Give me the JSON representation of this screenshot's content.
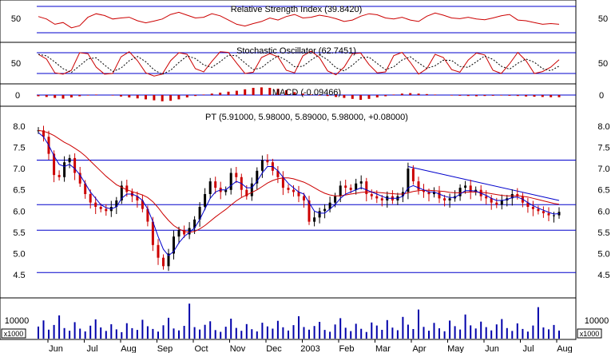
{
  "colors": {
    "background": "#ffffff",
    "frame": "#000000",
    "indicator_line": "#cc0000",
    "moving_average": "#0000cc",
    "guide_line": "#0000cc",
    "candle_up": "#000000",
    "candle_down": "#cc0000",
    "volume_bars": "#0000aa",
    "macd_bars": "#cc0000"
  },
  "chart_data": [
    {
      "type": "line",
      "title": "Relative Strength Index (39.8420)",
      "yticks": [
        "50"
      ],
      "ylim": [
        0,
        100
      ],
      "guide_levels": [
        70,
        30
      ],
      "series": [
        {
          "values": [
            62,
            55,
            40,
            45,
            30,
            36,
            60,
            70,
            65,
            55,
            58,
            60,
            50,
            44,
            49,
            55,
            68,
            74,
            66,
            58,
            60,
            70,
            64,
            52,
            40,
            35,
            42,
            48,
            58,
            52,
            62,
            68,
            58,
            60,
            66,
            62,
            56,
            48,
            52,
            63,
            70,
            67,
            58,
            55,
            60,
            52,
            48,
            63,
            72,
            66,
            58,
            56,
            60,
            55,
            53,
            58,
            64,
            68,
            52,
            50,
            45,
            40,
            42,
            40
          ]
        }
      ]
    },
    {
      "type": "line",
      "title": "Stochastic Oscillator (62.7451)",
      "yticks": [
        "50"
      ],
      "ylim": [
        0,
        100
      ],
      "guide_levels": [
        80,
        20
      ],
      "series": [
        {
          "values": [
            80,
            65,
            22,
            18,
            30,
            85,
            82,
            40,
            18,
            20,
            72,
            88,
            60,
            22,
            12,
            18,
            60,
            85,
            80,
            35,
            25,
            58,
            88,
            86,
            52,
            20,
            24,
            70,
            82,
            72,
            30,
            22,
            75,
            90,
            70,
            28,
            16,
            40,
            82,
            84,
            48,
            22,
            25,
            76,
            86,
            55,
            18,
            35,
            80,
            70,
            32,
            24,
            62,
            84,
            78,
            30,
            20,
            50,
            86,
            60,
            20,
            26,
            40,
            63
          ]
        }
      ]
    },
    {
      "type": "bar",
      "title": "MACD (-0.09466)",
      "yticks": [
        "0"
      ],
      "ylim": [
        -0.4,
        0.4
      ],
      "series": [
        {
          "values": [
            -0.05,
            -0.08,
            -0.12,
            -0.15,
            -0.1,
            -0.05,
            -0.02,
            0.02,
            0.0,
            -0.02,
            -0.06,
            -0.1,
            -0.14,
            -0.18,
            -0.22,
            -0.26,
            -0.24,
            -0.18,
            -0.1,
            -0.04,
            0.02,
            0.06,
            0.1,
            0.14,
            0.18,
            0.24,
            0.3,
            0.32,
            0.3,
            0.26,
            0.2,
            0.12,
            0.06,
            0.02,
            -0.02,
            -0.04,
            -0.08,
            -0.12,
            -0.16,
            -0.2,
            -0.16,
            -0.1,
            -0.05,
            0.02,
            0.06,
            0.08,
            0.06,
            0.04,
            0.02,
            0.0,
            -0.02,
            -0.03,
            -0.04,
            -0.05,
            -0.04,
            -0.03,
            -0.02,
            -0.03,
            -0.04,
            -0.06,
            -0.07,
            -0.08,
            -0.09,
            -0.09
          ]
        }
      ]
    },
    {
      "type": "bar",
      "title": "PT (5.91000, 5.98000, 5.89000, 5.98000, +0.08000)",
      "ylim": [
        4.2,
        8.2
      ],
      "yticks": [
        "8.0",
        "7.5",
        "7.0",
        "6.5",
        "6.0",
        "5.5",
        "5.0",
        "4.5"
      ],
      "xticks": [
        "Jun",
        "Jul",
        "Aug",
        "Sep",
        "Oct",
        "Nov",
        "Dec",
        "2003",
        "Feb",
        "Mar",
        "Apr",
        "May",
        "Jun",
        "Jul",
        "Aug"
      ],
      "horizontal_levels": [
        7.2,
        6.15,
        5.55,
        4.55
      ],
      "trendline": {
        "from": {
          "index": 71,
          "value": 7.05
        },
        "to": {
          "index": 100,
          "value": 6.25
        }
      },
      "close": [
        7.9,
        7.75,
        7.35,
        6.85,
        6.8,
        7.15,
        7.25,
        6.9,
        6.65,
        6.4,
        6.2,
        6.1,
        6.05,
        6.0,
        6.1,
        6.25,
        6.6,
        6.45,
        6.35,
        6.25,
        6.05,
        5.75,
        5.2,
        4.9,
        4.7,
        5.0,
        5.4,
        5.55,
        5.45,
        5.6,
        5.8,
        6.1,
        6.4,
        6.7,
        6.55,
        6.45,
        6.5,
        6.9,
        6.8,
        6.5,
        6.35,
        6.65,
        6.95,
        7.2,
        7.15,
        6.95,
        6.8,
        6.55,
        6.5,
        6.45,
        6.35,
        6.25,
        5.75,
        5.85,
        6.0,
        6.05,
        6.2,
        6.35,
        6.6,
        6.55,
        6.5,
        6.65,
        6.7,
        6.4,
        6.35,
        6.3,
        6.25,
        6.35,
        6.25,
        6.35,
        6.45,
        7.0,
        6.7,
        6.5,
        6.45,
        6.4,
        6.45,
        6.3,
        6.25,
        6.3,
        6.35,
        6.55,
        6.6,
        6.45,
        6.5,
        6.35,
        6.3,
        6.2,
        6.15,
        6.25,
        6.3,
        6.4,
        6.35,
        6.2,
        6.1,
        6.05,
        6.0,
        5.95,
        5.9,
        5.9,
        5.98
      ],
      "ma_short": [
        7.85,
        7.75,
        7.55,
        7.3,
        7.1,
        7.05,
        7.1,
        7.0,
        6.85,
        6.65,
        6.45,
        6.3,
        6.15,
        6.08,
        6.05,
        6.1,
        6.3,
        6.4,
        6.4,
        6.35,
        6.25,
        6.05,
        5.75,
        5.4,
        5.1,
        4.95,
        5.05,
        5.25,
        5.4,
        5.5,
        5.6,
        5.8,
        6.05,
        6.3,
        6.45,
        6.5,
        6.5,
        6.6,
        6.7,
        6.65,
        6.55,
        6.55,
        6.7,
        6.9,
        7.05,
        7.05,
        6.95,
        6.8,
        6.65,
        6.55,
        6.45,
        6.4,
        6.2,
        6.0,
        5.95,
        5.95,
        6.05,
        6.15,
        6.3,
        6.4,
        6.45,
        6.5,
        6.55,
        6.5,
        6.45,
        6.4,
        6.35,
        6.3,
        6.3,
        6.3,
        6.35,
        6.55,
        6.6,
        6.55,
        6.5,
        6.45,
        6.45,
        6.4,
        6.35,
        6.32,
        6.32,
        6.4,
        6.48,
        6.48,
        6.47,
        6.42,
        6.37,
        6.3,
        6.25,
        6.25,
        6.27,
        6.32,
        6.33,
        6.28,
        6.2,
        6.13,
        6.07,
        6.02,
        5.97,
        5.93,
        5.94
      ],
      "ma_long": [
        7.9,
        7.88,
        7.84,
        7.78,
        7.7,
        7.62,
        7.56,
        7.48,
        7.4,
        7.3,
        7.18,
        7.06,
        6.94,
        6.82,
        6.72,
        6.62,
        6.56,
        6.5,
        6.46,
        6.42,
        6.38,
        6.32,
        6.22,
        6.08,
        5.92,
        5.78,
        5.66,
        5.58,
        5.52,
        5.5,
        5.52,
        5.58,
        5.66,
        5.76,
        5.86,
        5.95,
        6.04,
        6.14,
        6.24,
        6.32,
        6.38,
        6.44,
        6.5,
        6.58,
        6.66,
        6.72,
        6.76,
        6.78,
        6.78,
        6.76,
        6.72,
        6.68,
        6.62,
        6.55,
        6.48,
        6.42,
        6.38,
        6.36,
        6.36,
        6.38,
        6.4,
        6.42,
        6.44,
        6.45,
        6.45,
        6.44,
        6.43,
        6.42,
        6.41,
        6.4,
        6.4,
        6.43,
        6.46,
        6.48,
        6.49,
        6.49,
        6.48,
        6.47,
        6.46,
        6.44,
        6.43,
        6.43,
        6.44,
        6.45,
        6.45,
        6.44,
        6.43,
        6.41,
        6.39,
        6.37,
        6.36,
        6.36,
        6.36,
        6.35,
        6.33,
        6.3,
        6.27,
        6.24,
        6.21,
        6.18,
        6.16
      ]
    },
    {
      "type": "bar",
      "title": "",
      "yticks": [
        "10000"
      ],
      "unit_label": "x1000",
      "ylim": [
        0,
        25000
      ],
      "series": [
        {
          "values": [
            8200,
            12400,
            6100,
            9300,
            15800,
            7200,
            5400,
            11200,
            6800,
            4900,
            8800,
            13100,
            7600,
            5200,
            9800,
            6300,
            4400,
            10500,
            7100,
            5900,
            12800,
            8400,
            6600,
            4800,
            9100,
            14200,
            6900,
            5600,
            8700,
            23800,
            7800,
            6200,
            9400,
            11800,
            5800,
            4600,
            8100,
            13600,
            7300,
            5300,
            9900,
            6400,
            4900,
            10800,
            8300,
            6800,
            12100,
            7700,
            5500,
            9200,
            15200,
            7900,
            6100,
            8600,
            11400,
            5900,
            4700,
            9600,
            13900,
            7400,
            5100,
            10100,
            6700,
            4500,
            11000,
            8900,
            6000,
            12600,
            7500,
            5700,
            14800,
            9500,
            6500,
            19800,
            8000,
            5400,
            10700,
            7000,
            5000,
            12300,
            8500,
            6200,
            16400,
            9000,
            6900,
            11600,
            7800,
            5600,
            9700,
            13300,
            7200,
            5200,
            10400,
            6600,
            4800,
            8900,
            21400,
            7600,
            6300,
            9300,
            5500
          ]
        }
      ]
    }
  ]
}
